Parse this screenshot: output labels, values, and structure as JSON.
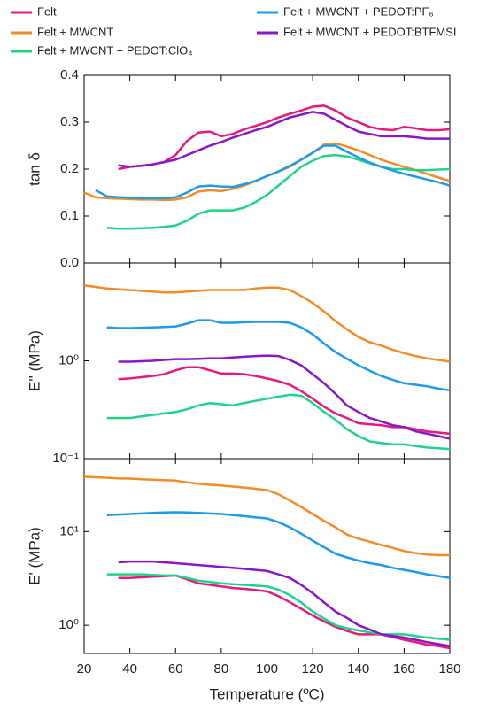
{
  "chart_data": [
    {
      "type": "line",
      "ylabel": "tan δ",
      "legend": "top",
      "x": [
        20,
        25,
        30,
        35,
        40,
        45,
        50,
        55,
        60,
        65,
        70,
        75,
        80,
        85,
        90,
        95,
        100,
        105,
        110,
        115,
        120,
        125,
        130,
        135,
        140,
        145,
        150,
        155,
        160,
        165,
        170,
        175,
        180
      ],
      "xlim": [
        20,
        180
      ],
      "ylim": [
        0,
        0.4
      ],
      "yticks": [
        {
          "value": 0,
          "label": "0.0"
        },
        0.1,
        0.2,
        0.3,
        0.4
      ],
      "series": [
        {
          "name": "Felt",
          "color": "#e6197f",
          "values": [
            null,
            null,
            null,
            0.2,
            0.205,
            0.207,
            0.21,
            0.215,
            0.23,
            0.26,
            0.278,
            0.28,
            0.27,
            0.275,
            0.285,
            0.292,
            0.3,
            0.31,
            0.318,
            0.325,
            0.333,
            0.335,
            0.325,
            0.31,
            0.3,
            0.29,
            0.285,
            0.283,
            0.29,
            0.287,
            0.283,
            0.283,
            0.285
          ]
        },
        {
          "name": "Felt + MWCNT",
          "color": "#f28c28",
          "values": [
            0.15,
            0.14,
            0.138,
            0.137,
            0.136,
            0.135,
            0.135,
            0.134,
            0.135,
            0.14,
            0.152,
            0.155,
            0.153,
            0.158,
            0.165,
            0.175,
            0.185,
            0.195,
            0.205,
            0.22,
            0.235,
            0.252,
            0.255,
            0.248,
            0.24,
            0.23,
            0.22,
            0.212,
            0.205,
            0.198,
            0.19,
            0.182,
            0.175
          ]
        },
        {
          "name": "Felt + MWCNT + PEDOT:ClO₄",
          "color": "#1fd38a",
          "values": [
            null,
            null,
            0.075,
            0.073,
            0.073,
            0.074,
            0.075,
            0.077,
            0.08,
            0.09,
            0.105,
            0.112,
            0.112,
            0.112,
            0.118,
            0.13,
            0.145,
            0.165,
            0.185,
            0.205,
            0.218,
            0.228,
            0.23,
            0.227,
            0.22,
            0.212,
            0.205,
            0.2,
            0.2,
            0.198,
            0.198,
            0.199,
            0.2
          ]
        },
        {
          "name": "Felt + MWCNT + PEDOT:PF₆",
          "color": "#1e9be8",
          "values": [
            null,
            0.155,
            0.142,
            0.14,
            0.139,
            0.138,
            0.138,
            0.138,
            0.14,
            0.15,
            0.163,
            0.165,
            0.163,
            0.162,
            0.168,
            0.175,
            0.185,
            0.195,
            0.207,
            0.22,
            0.235,
            0.25,
            0.25,
            0.237,
            0.225,
            0.214,
            0.205,
            0.197,
            0.19,
            0.184,
            0.178,
            0.172,
            0.165
          ]
        },
        {
          "name": "Felt + MWCNT + PEDOT:BTFMSI",
          "color": "#8a16c8",
          "values": [
            null,
            null,
            null,
            0.208,
            0.205,
            0.207,
            0.21,
            0.215,
            0.22,
            0.23,
            0.24,
            0.25,
            0.258,
            0.267,
            0.275,
            0.283,
            0.29,
            0.3,
            0.31,
            0.316,
            0.322,
            0.318,
            0.305,
            0.292,
            0.28,
            0.275,
            0.27,
            0.27,
            0.27,
            0.268,
            0.265,
            0.265,
            0.265
          ]
        }
      ]
    },
    {
      "type": "line",
      "ylabel": "E'' (MPa)",
      "log_y": true,
      "x": [
        20,
        25,
        30,
        35,
        40,
        45,
        50,
        55,
        60,
        65,
        70,
        75,
        80,
        85,
        90,
        95,
        100,
        105,
        110,
        115,
        120,
        125,
        130,
        135,
        140,
        145,
        150,
        155,
        160,
        165,
        170,
        175,
        180
      ],
      "xlim": [
        20,
        180
      ],
      "ylim": [
        0.1,
        10
      ],
      "yticks": [
        {
          "value": 1,
          "label": "10⁰"
        },
        {
          "value": 0.1,
          "label": "10⁻¹"
        }
      ],
      "series": [
        {
          "color": "#e6197f",
          "values": [
            null,
            null,
            null,
            0.65,
            0.66,
            0.68,
            0.7,
            0.73,
            0.8,
            0.86,
            0.86,
            0.8,
            0.74,
            0.74,
            0.73,
            0.7,
            0.66,
            0.62,
            0.57,
            0.49,
            0.41,
            0.34,
            0.29,
            0.26,
            0.23,
            0.225,
            0.22,
            0.21,
            0.21,
            0.2,
            0.19,
            0.185,
            0.18
          ]
        },
        {
          "color": "#f28c28",
          "values": [
            5.9,
            5.7,
            5.5,
            5.4,
            5.3,
            5.2,
            5.1,
            5.0,
            5.0,
            5.1,
            5.2,
            5.3,
            5.3,
            5.3,
            5.3,
            5.5,
            5.6,
            5.6,
            5.3,
            4.6,
            3.9,
            3.2,
            2.55,
            2.1,
            1.75,
            1.55,
            1.43,
            1.3,
            1.2,
            1.12,
            1.06,
            1.02,
            0.98
          ]
        },
        {
          "color": "#1fd38a",
          "values": [
            null,
            null,
            0.26,
            0.26,
            0.26,
            0.27,
            0.28,
            0.29,
            0.3,
            0.32,
            0.35,
            0.37,
            0.36,
            0.35,
            0.37,
            0.39,
            0.41,
            0.43,
            0.45,
            0.44,
            0.37,
            0.3,
            0.25,
            0.2,
            0.17,
            0.15,
            0.145,
            0.14,
            0.14,
            0.135,
            0.13,
            0.128,
            0.125
          ]
        },
        {
          "color": "#1e9be8",
          "values": [
            null,
            null,
            2.2,
            2.16,
            2.16,
            2.18,
            2.2,
            2.22,
            2.25,
            2.4,
            2.6,
            2.6,
            2.45,
            2.45,
            2.48,
            2.5,
            2.5,
            2.5,
            2.45,
            2.2,
            1.87,
            1.5,
            1.23,
            1.05,
            0.9,
            0.79,
            0.7,
            0.64,
            0.59,
            0.57,
            0.55,
            0.52,
            0.5
          ]
        },
        {
          "color": "#8a16c8",
          "values": [
            null,
            null,
            null,
            0.98,
            0.98,
            0.99,
            1.0,
            1.02,
            1.04,
            1.04,
            1.05,
            1.06,
            1.06,
            1.08,
            1.1,
            1.12,
            1.13,
            1.12,
            1.02,
            0.9,
            0.73,
            0.59,
            0.46,
            0.35,
            0.3,
            0.26,
            0.24,
            0.22,
            0.21,
            0.19,
            0.18,
            0.17,
            0.16
          ]
        }
      ]
    },
    {
      "type": "line",
      "ylabel": "E' (MPa)",
      "log_y": true,
      "xlabel": "Temperature (ºC)",
      "x": [
        20,
        25,
        30,
        35,
        40,
        45,
        50,
        55,
        60,
        65,
        70,
        75,
        80,
        85,
        90,
        95,
        100,
        105,
        110,
        115,
        120,
        125,
        130,
        135,
        140,
        145,
        150,
        155,
        160,
        165,
        170,
        175,
        180
      ],
      "xlim": [
        20,
        180
      ],
      "xticks": [
        20,
        40,
        60,
        80,
        100,
        120,
        140,
        160,
        180
      ],
      "ylim": [
        0.5,
        60
      ],
      "yticks": [
        {
          "value": 10,
          "label": "10¹"
        },
        {
          "value": 1,
          "label": "10⁰"
        }
      ],
      "series": [
        {
          "color": "#e6197f",
          "values": [
            null,
            null,
            null,
            3.2,
            3.2,
            3.25,
            3.3,
            3.35,
            3.4,
            3.1,
            2.8,
            2.7,
            2.6,
            2.5,
            2.45,
            2.38,
            2.3,
            2.05,
            1.76,
            1.5,
            1.27,
            1.1,
            0.96,
            0.87,
            0.8,
            0.8,
            0.8,
            0.75,
            0.7,
            0.66,
            0.62,
            0.6,
            0.57
          ]
        },
        {
          "color": "#f28c28",
          "values": [
            38.5,
            38,
            37.5,
            37,
            36.8,
            36.2,
            35.8,
            35.4,
            35,
            33.5,
            32.5,
            31.6,
            31,
            30.2,
            29.5,
            28.6,
            27.7,
            25,
            21.5,
            18.3,
            15.4,
            13,
            11.1,
            9.3,
            8.4,
            7.8,
            7.2,
            6.7,
            6.2,
            5.9,
            5.7,
            5.6,
            5.6
          ]
        },
        {
          "color": "#1fd38a",
          "values": [
            null,
            null,
            3.5,
            3.5,
            3.5,
            3.5,
            3.45,
            3.4,
            3.4,
            3.2,
            3.0,
            2.9,
            2.8,
            2.75,
            2.7,
            2.65,
            2.6,
            2.4,
            2.1,
            1.75,
            1.4,
            1.18,
            1.0,
            0.93,
            0.88,
            0.84,
            0.8,
            0.8,
            0.8,
            0.77,
            0.74,
            0.72,
            0.7
          ]
        },
        {
          "color": "#1e9be8",
          "values": [
            null,
            null,
            15,
            15.2,
            15.4,
            15.6,
            15.8,
            16,
            16.1,
            16,
            15.8,
            15.6,
            15.4,
            15,
            14.6,
            14.2,
            13.8,
            12.6,
            11.1,
            9.5,
            8,
            6.8,
            5.8,
            5.3,
            4.9,
            4.6,
            4.4,
            4.1,
            3.9,
            3.7,
            3.5,
            3.35,
            3.2
          ]
        },
        {
          "color": "#8a16c8",
          "values": [
            null,
            null,
            null,
            4.7,
            4.8,
            4.8,
            4.8,
            4.7,
            4.6,
            4.5,
            4.4,
            4.3,
            4.2,
            4.1,
            4.0,
            3.9,
            3.8,
            3.5,
            3.2,
            2.7,
            2.2,
            1.75,
            1.4,
            1.2,
            1.0,
            0.9,
            0.8,
            0.77,
            0.74,
            0.7,
            0.66,
            0.63,
            0.6
          ]
        }
      ]
    }
  ]
}
